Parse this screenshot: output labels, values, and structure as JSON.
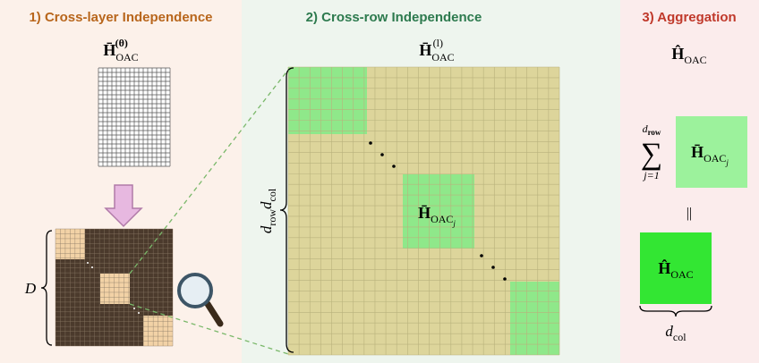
{
  "panels": [
    {
      "title": "1) Cross-layer Independence",
      "matrix_label": {
        "base": "H̄",
        "sub": "OAC",
        "sup": "(θ)"
      },
      "brace_label": "D"
    },
    {
      "title": "2) Cross-row Independence",
      "matrix_label": {
        "base": "H̄",
        "sub": "OAC",
        "sup": "(l)"
      },
      "block_label": {
        "base": "H̄",
        "sub": "OAC",
        "subsub": "j"
      },
      "brace_label": {
        "a": "d",
        "a_sub": "row",
        "b": "d",
        "b_sub": "col"
      }
    },
    {
      "title": "3) Aggregation",
      "result_label": {
        "base": "Ĥ",
        "sub": "OAC"
      },
      "sum": {
        "symbol": "∑",
        "upper": "d",
        "upper_sub": "row",
        "lower": "j=1"
      },
      "block_label": {
        "base": "H̄",
        "sub": "OAC",
        "subsub": "j"
      },
      "equals": "||",
      "final_label": {
        "base": "Ĥ",
        "sub": "OAC"
      },
      "brace_label": {
        "a": "d",
        "a_sub": "col"
      }
    }
  ]
}
